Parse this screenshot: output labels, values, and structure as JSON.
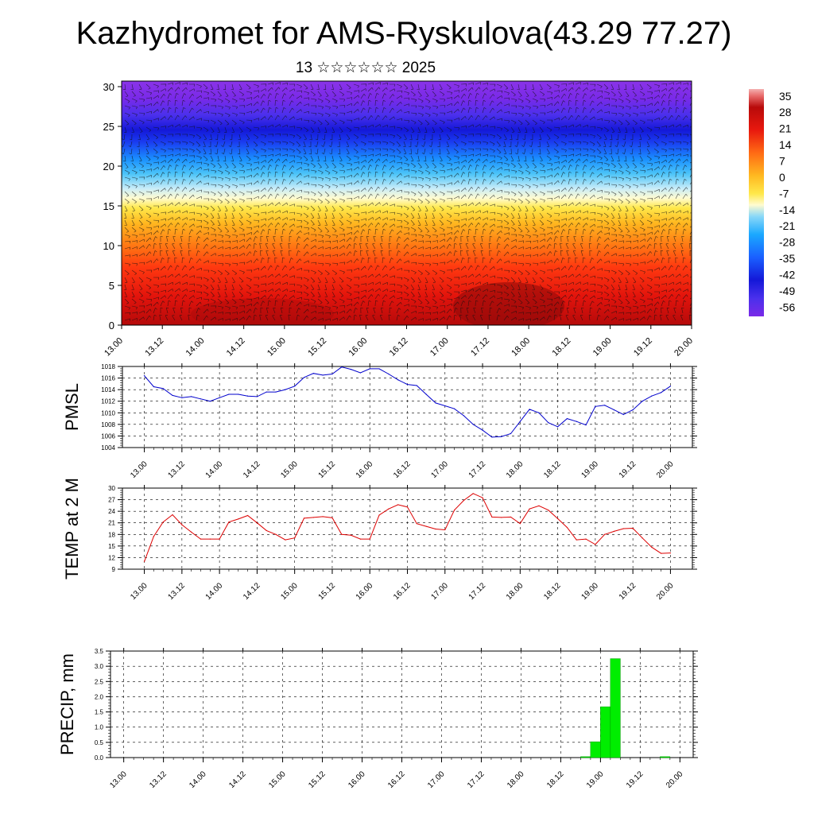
{
  "header": {
    "title": "Kazhydromet for AMS-Ryskulova(43.29 77.27)",
    "subtitle": "13 ☆☆☆☆☆☆ 2025"
  },
  "chart_data": [
    {
      "id": "section",
      "type": "heatmap",
      "title": "Kazhydromet for AMS-Ryskulova(43.29 77.27)",
      "subtitle": "13 ☆☆☆☆☆☆ 2025",
      "xlabel": "",
      "ylabel": "",
      "x_ticks": [
        "13.00",
        "13.12",
        "14.00",
        "14.12",
        "15.00",
        "15.12",
        "16.00",
        "16.12",
        "17.00",
        "17.12",
        "18.00",
        "18.12",
        "19.00",
        "19.12",
        "20.00"
      ],
      "y_ticks": [
        0,
        5,
        10,
        15,
        20,
        25,
        30
      ],
      "ylim": [
        0,
        30.7
      ],
      "colorbar_labels": [
        "35",
        "28",
        "21",
        "14",
        "7",
        "0",
        "-7",
        "-14",
        "-21",
        "-28",
        "-35",
        "-42",
        "-49",
        "-56"
      ],
      "colorbar_range": [
        -60,
        38
      ],
      "colors": {
        "warm": "#e8140f",
        "cold": "#1a1ef0",
        "top": "#7a2ae8"
      },
      "overlay": "wind barbs"
    },
    {
      "id": "pmsl",
      "type": "line",
      "ylabel": "PMSL",
      "ylim": [
        1004,
        1018
      ],
      "y_ticks": [
        1004,
        1006,
        1008,
        1010,
        1012,
        1014,
        1016,
        1018
      ],
      "x_ticks": [
        "13.00",
        "13.12",
        "14.00",
        "14.12",
        "15.00",
        "15.12",
        "16.00",
        "16.12",
        "17.00",
        "17.12",
        "18.00",
        "18.12",
        "19.00",
        "19.12",
        "20.00"
      ],
      "x": [
        0,
        3,
        6,
        9,
        12,
        15,
        18,
        21,
        24,
        27,
        30,
        33,
        36,
        39,
        42,
        45,
        48,
        51,
        54,
        57,
        60,
        63,
        66,
        69,
        72,
        75,
        78,
        81,
        84,
        87,
        90,
        93,
        96,
        99,
        102,
        105,
        108,
        111,
        114,
        117,
        120,
        123,
        126,
        129,
        132,
        135,
        138,
        141,
        144,
        147,
        150,
        153,
        156,
        159,
        162,
        165,
        168
      ],
      "values": [
        1016.4,
        1014.5,
        1014.2,
        1013.0,
        1012.6,
        1012.8,
        1012.4,
        1012.0,
        1012.6,
        1013.2,
        1013.2,
        1012.9,
        1012.8,
        1013.6,
        1013.6,
        1014.0,
        1014.6,
        1016.1,
        1016.8,
        1016.5,
        1016.7,
        1017.9,
        1017.5,
        1016.9,
        1017.6,
        1017.6,
        1016.7,
        1015.7,
        1014.9,
        1014.7,
        1013.2,
        1011.7,
        1011.2,
        1010.7,
        1009.5,
        1008.0,
        1007.0,
        1005.8,
        1005.9,
        1006.4,
        1008.5,
        1010.6,
        1010.0,
        1008.3,
        1007.6,
        1009.0,
        1008.5,
        1007.9,
        1011.1,
        1011.3,
        1010.5,
        1009.7,
        1010.5,
        1012.0,
        1012.9,
        1013.5,
        1014.6
      ],
      "color": "#0000cc"
    },
    {
      "id": "temp",
      "type": "line",
      "ylabel": "TEMP at 2 M",
      "ylim": [
        9,
        30
      ],
      "y_ticks": [
        9,
        12,
        15,
        18,
        21,
        24,
        27,
        30
      ],
      "x_ticks": [
        "13.00",
        "13.12",
        "14.00",
        "14.12",
        "15.00",
        "15.12",
        "16.00",
        "16.12",
        "17.00",
        "17.12",
        "18.00",
        "18.12",
        "19.00",
        "19.12",
        "20.00"
      ],
      "x": [
        0,
        3,
        6,
        9,
        12,
        15,
        18,
        21,
        24,
        27,
        30,
        33,
        36,
        39,
        42,
        45,
        48,
        51,
        54,
        57,
        60,
        63,
        66,
        69,
        72,
        75,
        78,
        81,
        84,
        87,
        90,
        93,
        96,
        99,
        102,
        105,
        108,
        111,
        114,
        117,
        120,
        123,
        126,
        129,
        132,
        135,
        138,
        141,
        144,
        147,
        150,
        153,
        156,
        159,
        162,
        165,
        168
      ],
      "values": [
        11.0,
        17.5,
        21.2,
        23.1,
        20.5,
        18.6,
        16.8,
        16.8,
        16.8,
        21.2,
        22.0,
        22.9,
        21.0,
        19.0,
        18.0,
        16.6,
        17.1,
        22.2,
        22.4,
        22.6,
        22.3,
        18.0,
        17.8,
        16.8,
        16.8,
        23.0,
        24.6,
        25.7,
        25.1,
        20.8,
        20.1,
        19.4,
        19.2,
        24.3,
        26.8,
        28.6,
        27.5,
        22.5,
        22.4,
        22.5,
        20.8,
        24.6,
        25.4,
        24.3,
        22.1,
        19.8,
        16.6,
        16.8,
        15.4,
        18.0,
        18.8,
        19.5,
        19.6,
        17.1,
        14.7,
        13.1,
        13.2
      ],
      "color": "#dd0000"
    },
    {
      "id": "precip",
      "type": "bar",
      "ylabel": "PRECIP, mm",
      "ylim": [
        0,
        3.5
      ],
      "y_ticks": [
        "0.0",
        "0.5",
        "1.0",
        "1.5",
        "2.0",
        "2.5",
        "3.0",
        "3.5"
      ],
      "x_ticks": [
        "13.00",
        "13.12",
        "14.00",
        "14.12",
        "15.00",
        "15.12",
        "16.00",
        "16.12",
        "17.00",
        "17.12",
        "18.00",
        "18.12",
        "19.00",
        "19.12",
        "20.00"
      ],
      "x": [
        138,
        141,
        144,
        147,
        162
      ],
      "values": [
        0.03,
        0.52,
        1.67,
        3.25,
        0.03
      ],
      "bar_width_hours": 3,
      "color": "#00ee00"
    }
  ]
}
